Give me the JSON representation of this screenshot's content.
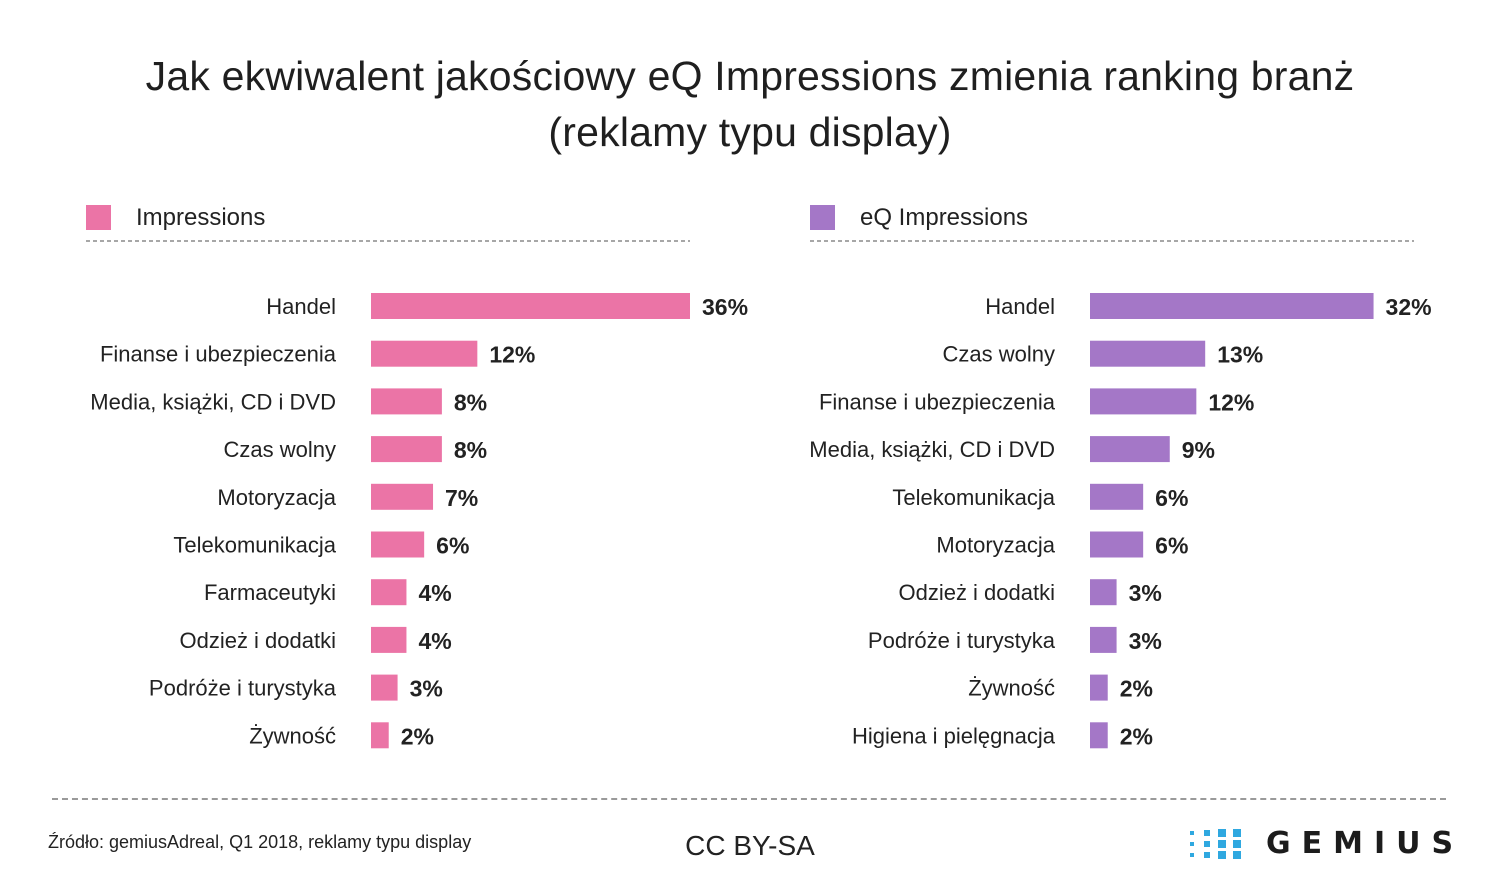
{
  "title": {
    "line1": "Jak ekwiwalent jakościowy eQ Impressions zmienia ranking branż",
    "line2": "(reklamy typu display)"
  },
  "colors": {
    "impressions": "#eb74a6",
    "eq_impressions": "#a477c7",
    "logo_dots": "#2fa8e0"
  },
  "chart_data": [
    {
      "type": "bar",
      "orientation": "horizontal",
      "legend": "Impressions",
      "legend_placement": "top-left",
      "color": "#eb74a6",
      "categories": [
        "Handel",
        "Finanse i ubezpieczenia",
        "Media, książki, CD i DVD",
        "Czas wolny",
        "Motoryzacja",
        "Telekomunikacja",
        "Farmaceutyki",
        "Odzież i dodatki",
        "Podróże i turystyka",
        "Żywność"
      ],
      "values": [
        36,
        12,
        8,
        8,
        7,
        6,
        4,
        4,
        3,
        2
      ],
      "value_labels": [
        "36%",
        "12%",
        "8%",
        "8%",
        "7%",
        "6%",
        "4%",
        "4%",
        "3%",
        "2%"
      ],
      "xlim": [
        0,
        36
      ],
      "grid": false
    },
    {
      "type": "bar",
      "orientation": "horizontal",
      "legend": "eQ Impressions",
      "legend_placement": "top-left",
      "color": "#a477c7",
      "categories": [
        "Handel",
        "Czas wolny",
        "Finanse i ubezpieczenia",
        "Media, książki, CD i DVD",
        "Telekomunikacja",
        "Motoryzacja",
        "Odzież i dodatki",
        "Podróże i turystyka",
        "Żywność",
        "Higiena i pielęgnacja"
      ],
      "values": [
        32,
        13,
        12,
        9,
        6,
        6,
        3,
        3,
        2,
        2
      ],
      "value_labels": [
        "32%",
        "13%",
        "12%",
        "9%",
        "6%",
        "6%",
        "3%",
        "3%",
        "2%",
        "2%"
      ],
      "xlim": [
        0,
        36
      ],
      "grid": false
    }
  ],
  "footer": {
    "source": "Źródło: gemiusAdreal, Q1 2018, reklamy typu display",
    "license": "CC BY-SA",
    "logo_text": "GEMIUS"
  }
}
